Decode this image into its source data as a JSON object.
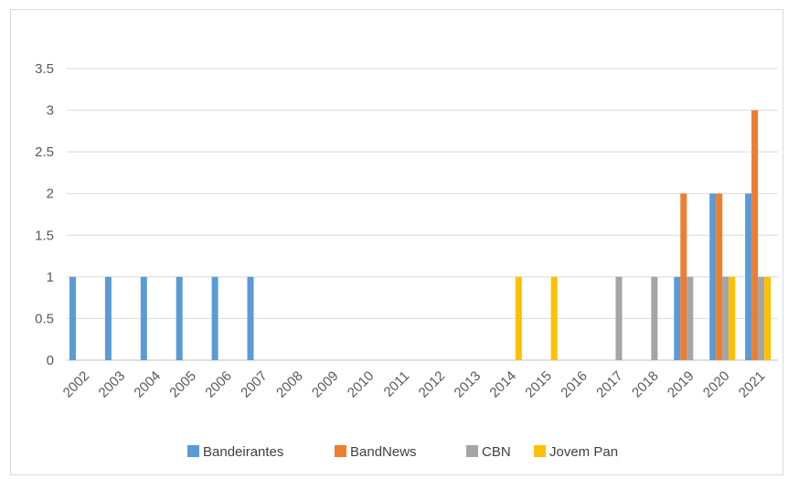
{
  "chart_data": {
    "type": "bar",
    "title": "",
    "xlabel": "",
    "ylabel": "",
    "ylim": [
      0,
      3.5
    ],
    "yticks": [
      0,
      0.5,
      1,
      1.5,
      2,
      2.5,
      3,
      3.5
    ],
    "grid": true,
    "legend_position": "bottom",
    "categories": [
      "2002",
      "2003",
      "2004",
      "2005",
      "2006",
      "2007",
      "2008",
      "2009",
      "2010",
      "2011",
      "2012",
      "2013",
      "2014",
      "2015",
      "2016",
      "2017",
      "2018",
      "2019",
      "2020",
      "2021"
    ],
    "series": [
      {
        "name": "Bandeirantes",
        "color": "#5b9bd5",
        "values": [
          1,
          1,
          1,
          1,
          1,
          1,
          0,
          0,
          0,
          0,
          0,
          0,
          0,
          0,
          0,
          0,
          0,
          1,
          2,
          2
        ]
      },
      {
        "name": "BandNews",
        "color": "#ed7d31",
        "values": [
          0,
          0,
          0,
          0,
          0,
          0,
          0,
          0,
          0,
          0,
          0,
          0,
          0,
          0,
          0,
          0,
          0,
          2,
          2,
          3
        ]
      },
      {
        "name": "CBN",
        "color": "#a5a5a5",
        "values": [
          0,
          0,
          0,
          0,
          0,
          0,
          0,
          0,
          0,
          0,
          0,
          0,
          0,
          0,
          0,
          1,
          1,
          1,
          1,
          1
        ]
      },
      {
        "name": "Jovem Pan",
        "color": "#ffc000",
        "values": [
          0,
          0,
          0,
          0,
          0,
          0,
          0,
          0,
          0,
          0,
          0,
          0,
          1,
          1,
          0,
          0,
          0,
          0,
          1,
          1
        ]
      }
    ]
  }
}
